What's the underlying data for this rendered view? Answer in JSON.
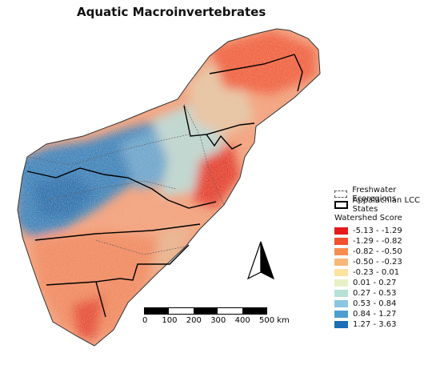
{
  "title": "Aquatic Macroinvertebrates",
  "legend": {
    "ecoregions": "Freshwater Ecoregions",
    "states": "Appalachian LCC States",
    "score_title": "Watershed Score",
    "classes": [
      {
        "label": "-5.13 - -1.29",
        "color": "#e31a1c"
      },
      {
        "label": "-1.29 - -0.82",
        "color": "#f0502e"
      },
      {
        "label": "-0.82 - -0.50",
        "color": "#f68c52"
      },
      {
        "label": "-0.50 - -0.23",
        "color": "#f8b878"
      },
      {
        "label": "-0.23 - 0.01",
        "color": "#fbe3a0"
      },
      {
        "label": "0.01 - 0.27",
        "color": "#e8f0c8"
      },
      {
        "label": "0.27 - 0.53",
        "color": "#b7e1d6"
      },
      {
        "label": "0.53 - 0.84",
        "color": "#88c6e2"
      },
      {
        "label": "0.84 - 1.27",
        "color": "#4c9ed0"
      },
      {
        "label": "1.27 - 3.63",
        "color": "#1a6fb4"
      }
    ]
  },
  "scale": {
    "ticks": [
      "0",
      "100",
      "200",
      "300",
      "400",
      "500 km"
    ]
  }
}
